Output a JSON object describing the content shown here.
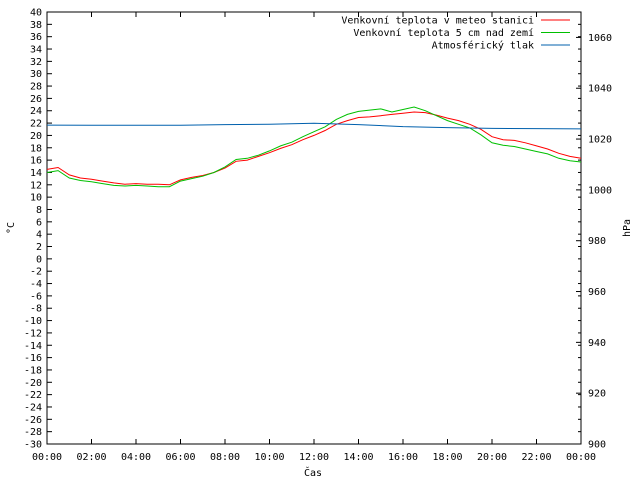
{
  "chart_data": {
    "type": "line",
    "xlabel": "Čas",
    "ylabel_left": "°C",
    "ylabel_right": "hPa",
    "x_ticks": [
      "00:00",
      "02:00",
      "04:00",
      "06:00",
      "08:00",
      "10:00",
      "12:00",
      "14:00",
      "16:00",
      "18:00",
      "20:00",
      "22:00",
      "00:00"
    ],
    "x_range_hours": [
      0,
      24
    ],
    "ylim_left": [
      -30,
      40
    ],
    "y_ticks_left": [
      40,
      38,
      36,
      34,
      32,
      30,
      28,
      26,
      24,
      22,
      20,
      18,
      16,
      14,
      12,
      10,
      8,
      6,
      4,
      2,
      0,
      -2,
      -4,
      -6,
      -8,
      -10,
      -12,
      -14,
      -16,
      -18,
      -20,
      -22,
      -24,
      -26,
      -28,
      -30
    ],
    "ylim_right": [
      900,
      1070
    ],
    "y_ticks_right": [
      1060,
      1040,
      1020,
      1000,
      980,
      960,
      940,
      920,
      900
    ],
    "grid": false,
    "legend_position": "top-right",
    "series": [
      {
        "name": "Venkovní teplota v meteo stanici",
        "color": "#ff0000",
        "axis": "left",
        "x": [
          0,
          0.5,
          1,
          1.5,
          2,
          2.5,
          3,
          3.5,
          4,
          4.5,
          5,
          5.5,
          6,
          6.5,
          7,
          7.5,
          8,
          8.5,
          9,
          9.5,
          10,
          10.5,
          11,
          11.5,
          12,
          12.5,
          13,
          13.5,
          14,
          14.5,
          15,
          15.5,
          16,
          16.5,
          17,
          17.5,
          18,
          18.5,
          19,
          19.5,
          20,
          20.5,
          21,
          21.5,
          22,
          22.5,
          23,
          23.5,
          24
        ],
        "y": [
          14.5,
          14.8,
          13.6,
          13.1,
          12.9,
          12.6,
          12.3,
          12.1,
          12.2,
          12.1,
          12.1,
          12.0,
          12.8,
          13.2,
          13.5,
          14.0,
          14.7,
          15.8,
          16.0,
          16.6,
          17.2,
          17.9,
          18.5,
          19.3,
          20.0,
          20.8,
          21.8,
          22.4,
          22.9,
          23.0,
          23.2,
          23.4,
          23.6,
          23.8,
          23.7,
          23.3,
          22.8,
          22.4,
          21.8,
          21.0,
          19.8,
          19.3,
          19.2,
          18.8,
          18.3,
          17.8,
          17.1,
          16.6,
          16.3
        ]
      },
      {
        "name": "Venkovní teplota 5 cm nad zemí",
        "color": "#00c000",
        "axis": "left",
        "x": [
          0,
          0.5,
          1,
          1.5,
          2,
          2.5,
          3,
          3.5,
          4,
          4.5,
          5,
          5.5,
          6,
          6.5,
          7,
          7.5,
          8,
          8.5,
          9,
          9.5,
          10,
          10.5,
          11,
          11.5,
          12,
          12.5,
          13,
          13.5,
          14,
          14.5,
          15,
          15.5,
          16,
          16.5,
          17,
          17.5,
          18,
          18.5,
          19,
          19.5,
          20,
          20.5,
          21,
          21.5,
          22,
          22.5,
          23,
          23.5,
          24
        ],
        "y": [
          14.0,
          14.3,
          13.1,
          12.7,
          12.5,
          12.2,
          11.9,
          11.8,
          11.9,
          11.8,
          11.7,
          11.7,
          12.6,
          13.0,
          13.4,
          14.0,
          14.9,
          16.1,
          16.3,
          16.8,
          17.5,
          18.3,
          18.9,
          19.8,
          20.6,
          21.4,
          22.6,
          23.4,
          23.9,
          24.1,
          24.3,
          23.8,
          24.2,
          24.6,
          24.0,
          23.2,
          22.4,
          21.8,
          21.2,
          20.1,
          18.8,
          18.4,
          18.2,
          17.8,
          17.4,
          17.0,
          16.3,
          15.9,
          15.7
        ]
      },
      {
        "name": "Atmosférický tlak",
        "color": "#0060ad",
        "axis": "right",
        "x": [
          0,
          2,
          4,
          6,
          8,
          10,
          12,
          14,
          16,
          18,
          20,
          22,
          24
        ],
        "y": [
          1025.5,
          1025.4,
          1025.4,
          1025.4,
          1025.7,
          1025.8,
          1026.2,
          1025.7,
          1024.9,
          1024.5,
          1024.2,
          1024.1,
          1024.0
        ]
      }
    ]
  }
}
